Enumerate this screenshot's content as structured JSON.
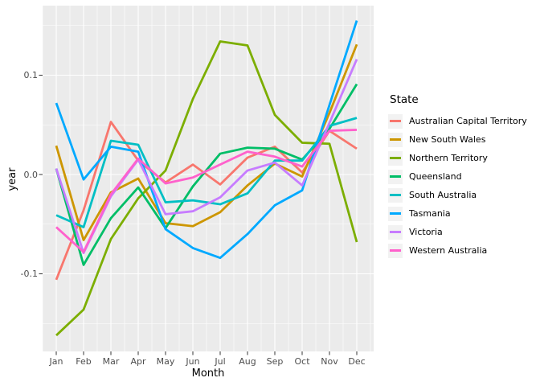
{
  "figure": {
    "background_color": "#FFFFFF",
    "panel_background_color": "#EBEBEB",
    "gridline_color": "#FFFFFF",
    "tick_mark_color": "#333333",
    "tick_label_color": "#4D4D4D",
    "axis_title_color": "#000000",
    "legend_key_background": "#F2F2F2"
  },
  "chart_data": {
    "type": "line",
    "title": "",
    "xlabel": "Month",
    "ylabel": "year",
    "x_categories": [
      "Jan",
      "Feb",
      "Mar",
      "Apr",
      "May",
      "Jun",
      "Jul",
      "Aug",
      "Sep",
      "Oct",
      "Nov",
      "Dec"
    ],
    "y_axis": {
      "major_tick_labels": [
        "0.1",
        "0.0",
        "-0.1"
      ],
      "major_tick_values": [
        0.1,
        0.0,
        -0.1
      ],
      "minor_tick_values": [
        0.15,
        0.05,
        -0.05,
        -0.15
      ],
      "ylim": [
        -0.178,
        0.171
      ]
    },
    "grid": {
      "major": true,
      "minor": true,
      "style": "white lines on gray panel"
    },
    "legend": {
      "position": "right",
      "title": "State"
    },
    "series": [
      {
        "name": "Australian Capital Territory",
        "color": "#F8766D",
        "values": [
          -0.106,
          -0.036,
          0.053,
          0.014,
          -0.008,
          0.01,
          -0.01,
          0.017,
          0.028,
          0.002,
          0.044,
          0.026
        ]
      },
      {
        "name": "New South Wales",
        "color": "#CD9600",
        "values": [
          0.029,
          -0.066,
          -0.018,
          -0.004,
          -0.049,
          -0.052,
          -0.038,
          -0.011,
          0.011,
          -0.002,
          0.062,
          0.131
        ]
      },
      {
        "name": "Northern Territory",
        "color": "#7CAE00",
        "values": [
          -0.162,
          -0.136,
          -0.065,
          -0.024,
          0.004,
          0.076,
          0.134,
          0.13,
          0.06,
          0.032,
          0.031,
          -0.068
        ]
      },
      {
        "name": "Queensland",
        "color": "#00BE67",
        "values": [
          0.006,
          -0.091,
          -0.044,
          -0.013,
          -0.054,
          -0.012,
          0.021,
          0.027,
          0.026,
          0.015,
          0.046,
          0.091
        ]
      },
      {
        "name": "South Australia",
        "color": "#00BFC4",
        "values": [
          -0.041,
          -0.053,
          0.034,
          0.03,
          -0.028,
          -0.026,
          -0.03,
          -0.019,
          0.014,
          0.014,
          0.049,
          0.057
        ]
      },
      {
        "name": "Tasmania",
        "color": "#00A9FF",
        "values": [
          0.072,
          -0.005,
          0.028,
          0.023,
          -0.055,
          -0.074,
          -0.084,
          -0.06,
          -0.031,
          -0.016,
          0.07,
          0.155
        ]
      },
      {
        "name": "Victoria",
        "color": "#C77CFF",
        "values": [
          0.006,
          -0.079,
          -0.022,
          0.015,
          -0.04,
          -0.037,
          -0.023,
          0.004,
          0.012,
          -0.011,
          0.052,
          0.116
        ]
      },
      {
        "name": "Western Australia",
        "color": "#FF61CC",
        "values": [
          -0.053,
          -0.078,
          -0.02,
          0.016,
          -0.009,
          -0.003,
          0.01,
          0.023,
          0.018,
          0.008,
          0.044,
          0.045
        ]
      }
    ]
  }
}
